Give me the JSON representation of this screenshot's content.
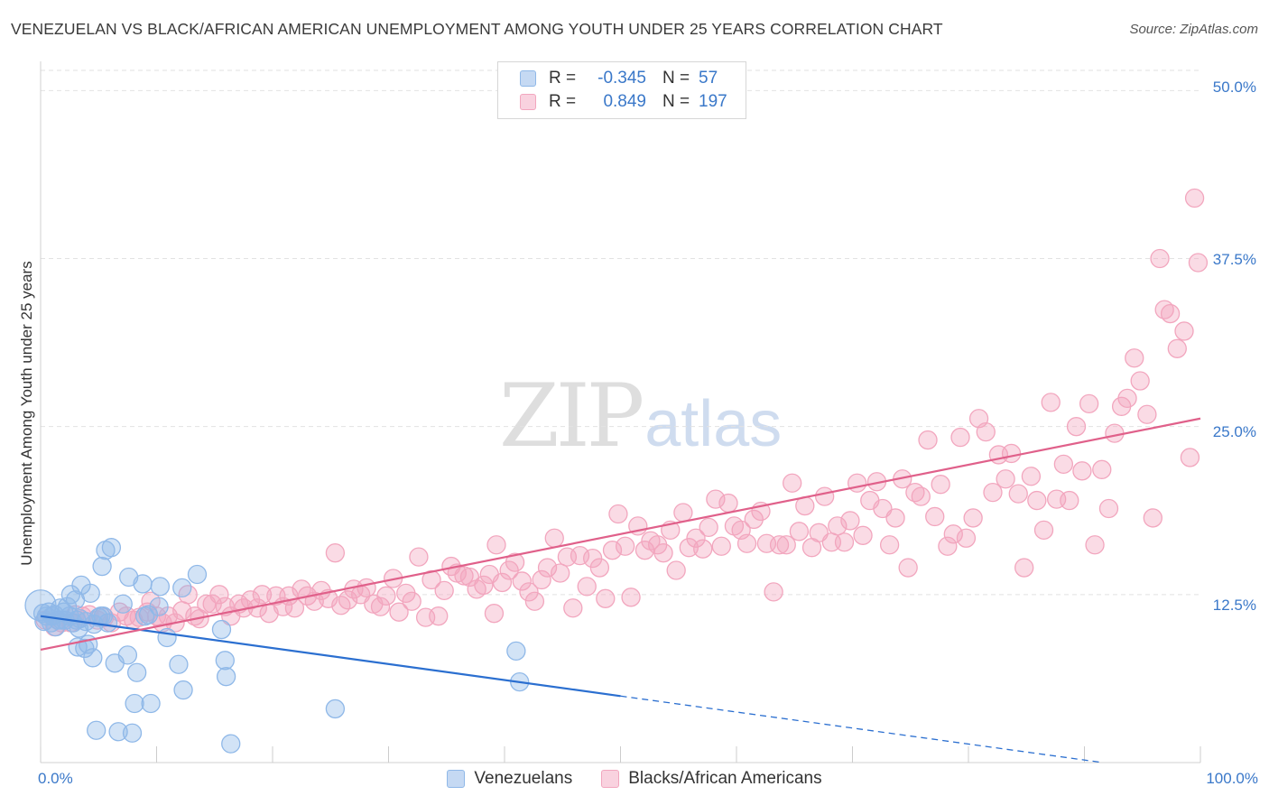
{
  "title": "VENEZUELAN VS BLACK/AFRICAN AMERICAN UNEMPLOYMENT AMONG YOUTH UNDER 25 YEARS CORRELATION CHART",
  "source": "Source: ZipAtlas.com",
  "watermark": {
    "zip": "ZIP",
    "atlas": "atlas"
  },
  "legend_top": [
    {
      "r_label": "R =",
      "r_value": "-0.345",
      "n_label": "N =",
      "n_value": "57"
    },
    {
      "r_label": "R =",
      "r_value": "0.849",
      "n_label": "N =",
      "n_value": "197"
    }
  ],
  "chart_data": {
    "type": "scatter",
    "title": "VENEZUELAN VS BLACK/AFRICAN AMERICAN UNEMPLOYMENT AMONG YOUTH UNDER 25 YEARS CORRELATION CHART",
    "xlabel": "",
    "ylabel": "Unemployment Among Youth under 25 years",
    "xlim": [
      0,
      100
    ],
    "ylim": [
      0,
      51.5
    ],
    "x_tick_labels": [
      "0.0%",
      "100.0%"
    ],
    "y_ticks": [
      12.5,
      25.0,
      37.5,
      50.0
    ],
    "y_tick_labels": [
      "12.5%",
      "25.0%",
      "37.5%",
      "50.0%"
    ],
    "grid": "horizontal dashed",
    "legend_placement": "bottom",
    "series": [
      {
        "name": "Venezuelans",
        "color": "#8fb8e8",
        "line_color": "#2b6fd0",
        "r": -0.345,
        "n": 57,
        "trend": {
          "x0": 0,
          "y0": 10.9,
          "x1": 100,
          "y1": -1.0,
          "solid_until": 50
        },
        "points": [
          [
            0,
            11.7
          ],
          [
            0.2,
            11.1
          ],
          [
            0.3,
            10.5
          ],
          [
            0.5,
            10.9
          ],
          [
            0.7,
            11.2
          ],
          [
            0.9,
            10.4
          ],
          [
            1.0,
            10.9
          ],
          [
            1.2,
            11.0
          ],
          [
            1.3,
            10.1
          ],
          [
            1.5,
            10.6
          ],
          [
            1.7,
            11.5
          ],
          [
            1.8,
            10.6
          ],
          [
            2.0,
            11.2
          ],
          [
            2.1,
            10.6
          ],
          [
            2.3,
            11.6
          ],
          [
            2.5,
            10.9
          ],
          [
            2.6,
            12.5
          ],
          [
            2.8,
            10.4
          ],
          [
            3.0,
            12.1
          ],
          [
            3.1,
            10.6
          ],
          [
            3.2,
            8.6
          ],
          [
            3.3,
            10.0
          ],
          [
            3.4,
            10.7
          ],
          [
            3.5,
            13.2
          ],
          [
            3.8,
            8.5
          ],
          [
            3.9,
            10.5
          ],
          [
            4.1,
            8.8
          ],
          [
            4.3,
            12.6
          ],
          [
            4.5,
            7.8
          ],
          [
            4.6,
            10.3
          ],
          [
            4.8,
            2.4
          ],
          [
            5.0,
            10.8
          ],
          [
            5.2,
            10.9
          ],
          [
            5.3,
            14.6
          ],
          [
            5.4,
            10.9
          ],
          [
            5.6,
            15.8
          ],
          [
            5.8,
            10.4
          ],
          [
            6.1,
            16.0
          ],
          [
            6.4,
            7.4
          ],
          [
            6.7,
            2.3
          ],
          [
            7.1,
            11.8
          ],
          [
            7.5,
            8.0
          ],
          [
            7.6,
            13.8
          ],
          [
            7.9,
            2.2
          ],
          [
            8.1,
            4.4
          ],
          [
            8.3,
            6.7
          ],
          [
            8.8,
            13.3
          ],
          [
            9.0,
            10.9
          ],
          [
            9.3,
            11.0
          ],
          [
            9.5,
            4.4
          ],
          [
            10.2,
            11.6
          ],
          [
            10.3,
            13.1
          ],
          [
            10.9,
            9.3
          ],
          [
            11.9,
            7.3
          ],
          [
            12.3,
            5.4
          ],
          [
            12.2,
            13.0
          ],
          [
            13.5,
            14.0
          ],
          [
            15.6,
            9.9
          ],
          [
            15.9,
            7.6
          ],
          [
            16.0,
            6.4
          ],
          [
            16.4,
            1.4
          ],
          [
            25.4,
            4.0
          ],
          [
            41.0,
            8.3
          ],
          [
            41.3,
            6.0
          ]
        ]
      },
      {
        "name": "Blacks/African Americans",
        "color": "#f2a6be",
        "line_color": "#e0608a",
        "r": 0.849,
        "n": 197,
        "trend": {
          "x0": 0,
          "y0": 8.4,
          "x1": 100,
          "y1": 25.6
        },
        "points": [
          [
            0.4,
            10.6
          ],
          [
            1.2,
            10.1
          ],
          [
            1.8,
            10.4
          ],
          [
            2.6,
            10.4
          ],
          [
            3.0,
            11.0
          ],
          [
            3.6,
            10.9
          ],
          [
            4.2,
            11.0
          ],
          [
            4.9,
            10.6
          ],
          [
            5.5,
            10.8
          ],
          [
            6.1,
            10.4
          ],
          [
            6.8,
            11.2
          ],
          [
            7.4,
            10.9
          ],
          [
            8.0,
            10.6
          ],
          [
            8.5,
            10.8
          ],
          [
            9.2,
            11.2
          ],
          [
            9.5,
            12.0
          ],
          [
            10.0,
            10.9
          ],
          [
            10.5,
            10.4
          ],
          [
            11.0,
            10.9
          ],
          [
            11.6,
            10.4
          ],
          [
            12.2,
            11.3
          ],
          [
            12.7,
            12.5
          ],
          [
            13.3,
            10.9
          ],
          [
            13.7,
            10.7
          ],
          [
            14.3,
            11.8
          ],
          [
            14.8,
            11.8
          ],
          [
            15.4,
            12.5
          ],
          [
            15.9,
            11.6
          ],
          [
            16.4,
            10.9
          ],
          [
            17.1,
            11.8
          ],
          [
            17.5,
            11.5
          ],
          [
            18.1,
            12.1
          ],
          [
            18.7,
            11.5
          ],
          [
            19.1,
            12.5
          ],
          [
            19.7,
            11.1
          ],
          [
            20.3,
            12.4
          ],
          [
            20.9,
            11.6
          ],
          [
            21.4,
            12.4
          ],
          [
            21.9,
            11.5
          ],
          [
            22.5,
            12.9
          ],
          [
            23.0,
            12.4
          ],
          [
            23.6,
            12.0
          ],
          [
            24.2,
            12.8
          ],
          [
            24.8,
            12.2
          ],
          [
            25.4,
            15.6
          ],
          [
            25.9,
            11.7
          ],
          [
            26.5,
            12.1
          ],
          [
            27.0,
            12.9
          ],
          [
            27.6,
            12.5
          ],
          [
            28.1,
            13.0
          ],
          [
            28.7,
            11.8
          ],
          [
            29.3,
            11.6
          ],
          [
            29.8,
            12.4
          ],
          [
            30.4,
            13.7
          ],
          [
            30.9,
            11.2
          ],
          [
            31.5,
            12.6
          ],
          [
            32.0,
            12.0
          ],
          [
            32.6,
            15.3
          ],
          [
            33.2,
            10.8
          ],
          [
            33.7,
            13.6
          ],
          [
            34.3,
            10.9
          ],
          [
            34.8,
            12.8
          ],
          [
            35.4,
            14.6
          ],
          [
            35.9,
            14.1
          ],
          [
            36.5,
            13.9
          ],
          [
            37.0,
            13.8
          ],
          [
            37.6,
            12.9
          ],
          [
            38.2,
            13.2
          ],
          [
            38.7,
            14.0
          ],
          [
            39.1,
            11.1
          ],
          [
            39.3,
            16.2
          ],
          [
            39.8,
            13.4
          ],
          [
            40.4,
            14.3
          ],
          [
            40.9,
            14.9
          ],
          [
            41.5,
            13.5
          ],
          [
            42.1,
            12.7
          ],
          [
            42.6,
            12.0
          ],
          [
            43.2,
            13.6
          ],
          [
            43.7,
            14.5
          ],
          [
            44.3,
            16.7
          ],
          [
            44.8,
            14.1
          ],
          [
            45.4,
            15.3
          ],
          [
            45.9,
            11.5
          ],
          [
            46.5,
            15.4
          ],
          [
            47.1,
            13.1
          ],
          [
            47.6,
            15.2
          ],
          [
            48.2,
            14.5
          ],
          [
            48.7,
            12.2
          ],
          [
            49.3,
            15.8
          ],
          [
            49.8,
            18.5
          ],
          [
            50.4,
            16.1
          ],
          [
            50.9,
            12.3
          ],
          [
            51.5,
            17.6
          ],
          [
            52.1,
            15.8
          ],
          [
            52.6,
            16.5
          ],
          [
            53.2,
            16.2
          ],
          [
            53.7,
            15.6
          ],
          [
            54.3,
            17.3
          ],
          [
            54.8,
            14.3
          ],
          [
            55.4,
            18.6
          ],
          [
            55.9,
            16.0
          ],
          [
            56.5,
            16.7
          ],
          [
            57.1,
            15.9
          ],
          [
            57.6,
            17.5
          ],
          [
            58.2,
            19.6
          ],
          [
            58.7,
            16.1
          ],
          [
            59.3,
            19.3
          ],
          [
            59.8,
            17.6
          ],
          [
            60.4,
            17.3
          ],
          [
            60.9,
            16.3
          ],
          [
            61.5,
            18.1
          ],
          [
            62.1,
            18.7
          ],
          [
            62.6,
            16.3
          ],
          [
            63.2,
            12.7
          ],
          [
            63.7,
            16.2
          ],
          [
            64.3,
            16.2
          ],
          [
            64.8,
            20.8
          ],
          [
            65.4,
            17.2
          ],
          [
            65.9,
            19.1
          ],
          [
            66.5,
            16.0
          ],
          [
            67.1,
            17.1
          ],
          [
            67.6,
            19.8
          ],
          [
            68.2,
            16.4
          ],
          [
            68.7,
            17.6
          ],
          [
            69.3,
            16.4
          ],
          [
            69.8,
            18.0
          ],
          [
            70.4,
            20.8
          ],
          [
            70.9,
            16.9
          ],
          [
            71.5,
            19.5
          ],
          [
            72.1,
            20.9
          ],
          [
            72.6,
            18.9
          ],
          [
            73.2,
            16.2
          ],
          [
            73.7,
            18.2
          ],
          [
            74.3,
            21.1
          ],
          [
            74.8,
            14.5
          ],
          [
            75.4,
            20.1
          ],
          [
            75.9,
            19.8
          ],
          [
            76.5,
            24.0
          ],
          [
            77.1,
            18.3
          ],
          [
            77.6,
            20.7
          ],
          [
            78.2,
            16.1
          ],
          [
            78.7,
            17.0
          ],
          [
            79.3,
            24.2
          ],
          [
            79.8,
            16.7
          ],
          [
            80.4,
            18.2
          ],
          [
            80.9,
            25.6
          ],
          [
            81.5,
            24.6
          ],
          [
            82.1,
            20.1
          ],
          [
            82.6,
            22.9
          ],
          [
            83.2,
            21.1
          ],
          [
            83.7,
            23.0
          ],
          [
            84.3,
            20.0
          ],
          [
            84.8,
            14.5
          ],
          [
            85.4,
            21.3
          ],
          [
            85.9,
            19.5
          ],
          [
            86.5,
            17.3
          ],
          [
            87.1,
            26.8
          ],
          [
            87.6,
            19.6
          ],
          [
            88.2,
            22.2
          ],
          [
            88.7,
            19.5
          ],
          [
            89.3,
            25.0
          ],
          [
            89.8,
            21.7
          ],
          [
            90.4,
            26.7
          ],
          [
            90.9,
            16.2
          ],
          [
            91.5,
            21.8
          ],
          [
            92.1,
            18.9
          ],
          [
            92.6,
            24.5
          ],
          [
            93.2,
            26.5
          ],
          [
            93.7,
            27.1
          ],
          [
            94.3,
            30.1
          ],
          [
            94.8,
            28.4
          ],
          [
            95.4,
            25.9
          ],
          [
            95.9,
            18.2
          ],
          [
            96.5,
            37.5
          ],
          [
            96.9,
            33.7
          ],
          [
            97.4,
            33.4
          ],
          [
            98.0,
            30.8
          ],
          [
            98.6,
            32.1
          ],
          [
            99.1,
            22.7
          ],
          [
            99.5,
            42.0
          ],
          [
            99.8,
            37.2
          ]
        ]
      }
    ]
  },
  "legend_bottom": [
    {
      "label": "Venezuelans",
      "color": "#c5d9f3",
      "border": "#8fb8e8"
    },
    {
      "label": "Blacks/African Americans",
      "color": "#f9d2df",
      "border": "#f2a6be"
    }
  ]
}
